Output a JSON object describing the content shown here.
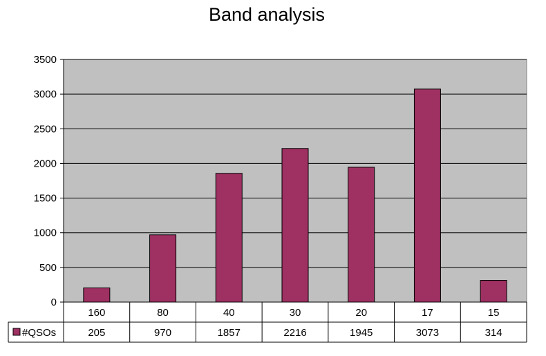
{
  "chart_data": {
    "type": "bar",
    "title": "Band analysis",
    "categories": [
      "160",
      "80",
      "40",
      "30",
      "20",
      "17",
      "15"
    ],
    "series": [
      {
        "name": "#QSOs",
        "values": [
          205,
          970,
          1857,
          2216,
          1945,
          3073,
          314
        ],
        "color": "#9E3062"
      }
    ],
    "ylim": [
      0,
      3500
    ],
    "yticks": [
      0,
      500,
      1000,
      1500,
      2000,
      2500,
      3000,
      3500
    ],
    "grid": true,
    "legend": "data-table",
    "plot_background": "#C0C0C0"
  }
}
